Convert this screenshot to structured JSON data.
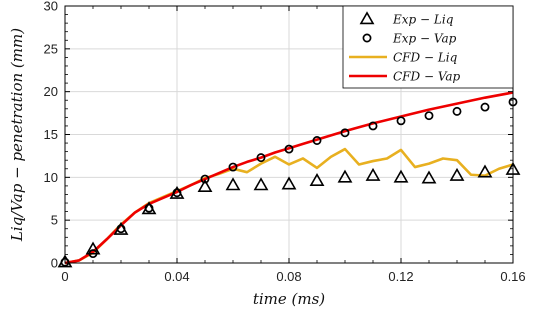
{
  "chart_data": {
    "type": "line",
    "xlabel": "time (ms)",
    "ylabel": "Liq/Vap − penetration (mm)",
    "xlim": [
      0,
      0.16
    ],
    "ylim": [
      0,
      30
    ],
    "xticks": [
      0,
      0.04,
      0.08,
      0.12,
      0.16
    ],
    "xtick_labels": [
      "0",
      "0.04",
      "0.08",
      "0.12",
      "0.16"
    ],
    "yticks": [
      0,
      5,
      10,
      15,
      20,
      25,
      30
    ],
    "ytick_labels": [
      "0",
      "5",
      "10",
      "15",
      "20",
      "25",
      "30"
    ],
    "grid": true,
    "legend_position": "top-right",
    "series": [
      {
        "name": "Exp − Liq",
        "kind": "markers",
        "marker": "triangle",
        "color": "#000000",
        "x": [
          0,
          0.01,
          0.02,
          0.03,
          0.04,
          0.05,
          0.06,
          0.07,
          0.08,
          0.09,
          0.1,
          0.11,
          0.12,
          0.13,
          0.14,
          0.15,
          0.16
        ],
        "y": [
          0.1,
          1.6,
          3.9,
          6.3,
          8.1,
          8.9,
          9.1,
          9.1,
          9.2,
          9.6,
          10.0,
          10.2,
          10.0,
          9.9,
          10.2,
          10.6,
          10.9
        ]
      },
      {
        "name": "Exp − Vap",
        "kind": "markers",
        "marker": "circle",
        "color": "#000000",
        "x": [
          0,
          0.01,
          0.02,
          0.03,
          0.04,
          0.05,
          0.06,
          0.07,
          0.08,
          0.09,
          0.1,
          0.11,
          0.12,
          0.13,
          0.14,
          0.15,
          0.16
        ],
        "y": [
          0.1,
          1.1,
          4.0,
          6.4,
          8.2,
          9.8,
          11.2,
          12.3,
          13.3,
          14.3,
          15.2,
          16.0,
          16.6,
          17.2,
          17.7,
          18.2,
          18.8
        ]
      },
      {
        "name": "CFD − Liq",
        "kind": "line",
        "color": "#e8b020",
        "x": [
          0,
          0.005,
          0.01,
          0.015,
          0.02,
          0.025,
          0.03,
          0.035,
          0.04,
          0.045,
          0.05,
          0.055,
          0.06,
          0.065,
          0.07,
          0.075,
          0.08,
          0.085,
          0.09,
          0.095,
          0.1,
          0.105,
          0.11,
          0.115,
          0.12,
          0.125,
          0.13,
          0.135,
          0.14,
          0.145,
          0.15,
          0.155,
          0.16
        ],
        "y": [
          0,
          0.3,
          1.2,
          2.8,
          4.5,
          5.9,
          7.0,
          7.7,
          8.4,
          9.1,
          9.9,
          10.4,
          11.0,
          10.6,
          11.6,
          12.4,
          11.5,
          12.2,
          11.1,
          12.4,
          13.3,
          11.5,
          11.9,
          12.2,
          13.2,
          11.2,
          11.6,
          12.2,
          12.0,
          10.3,
          10.2,
          11.0,
          11.5
        ]
      },
      {
        "name": "CFD − Vap",
        "kind": "line",
        "color": "#ee0000",
        "x": [
          0,
          0.005,
          0.01,
          0.015,
          0.02,
          0.025,
          0.03,
          0.035,
          0.04,
          0.045,
          0.05,
          0.055,
          0.06,
          0.065,
          0.07,
          0.075,
          0.08,
          0.085,
          0.09,
          0.095,
          0.1,
          0.11,
          0.12,
          0.13,
          0.14,
          0.15,
          0.16
        ],
        "y": [
          0,
          0.3,
          1.3,
          2.8,
          4.4,
          5.9,
          6.9,
          7.6,
          8.3,
          9.1,
          9.8,
          10.5,
          11.2,
          11.8,
          12.3,
          12.9,
          13.4,
          13.9,
          14.4,
          14.9,
          15.4,
          16.3,
          17.1,
          17.9,
          18.6,
          19.3,
          19.9
        ]
      }
    ]
  }
}
